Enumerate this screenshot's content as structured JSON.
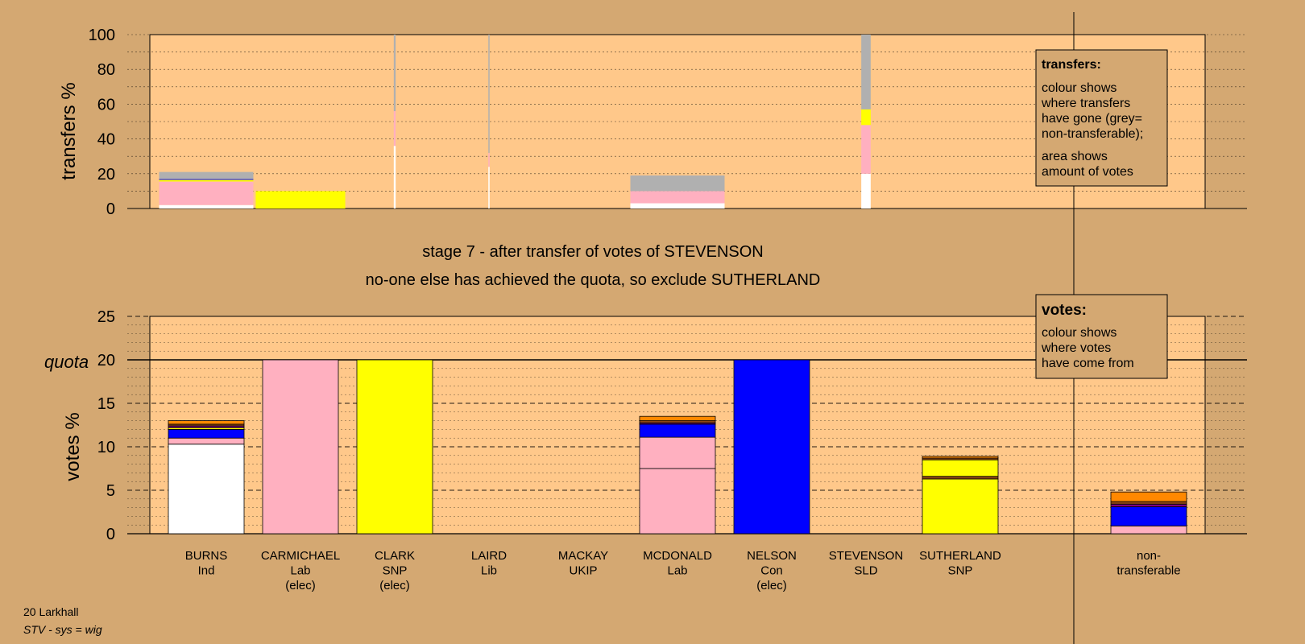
{
  "colors": {
    "background": "#d4a872",
    "plot_bg": "#ffc88a",
    "Ind": "#ffffff",
    "Lab": "#ffb0c0",
    "SNP": "#ffff00",
    "Con": "#0000ff",
    "Lib": "#ff8800",
    "UKIP": "#800080",
    "SLD": "#8b4513",
    "non-transferable": "#b0b0b0"
  },
  "header": {
    "line1": "stage 7 - after transfer of votes of STEVENSON",
    "line2": "no-one else has achieved the quota, so exclude SUTHERLAND"
  },
  "footer": {
    "ward": "20 Larkhall",
    "system": "STV - sys = wig"
  },
  "legends": {
    "transfers": {
      "title": "transfers:",
      "lines1": [
        "colour shows",
        "where transfers",
        "have gone (grey=",
        "non-transferable);"
      ],
      "lines2": [
        "area shows",
        "amount of votes"
      ]
    },
    "votes": {
      "title": "votes:",
      "lines": [
        "colour shows",
        "where votes",
        "have come from"
      ]
    }
  },
  "chart_data": [
    {
      "type": "bar",
      "stacked": true,
      "ylabel": "transfers %",
      "ylim": [
        0,
        100
      ],
      "yticks": [
        0,
        20,
        40,
        60,
        80,
        100
      ],
      "grid": true,
      "categories": [
        "BURNS",
        "CARMICHAEL",
        "CLARK",
        "LAIRD",
        "MACKAY",
        "MCDONALD",
        "NELSON",
        "STEVENSON",
        "SUTHERLAND"
      ],
      "bar_weights": [
        1.0,
        0.95,
        0.02,
        0.01,
        0,
        1.0,
        0,
        0.1,
        0
      ],
      "stacks": [
        [
          {
            "party": "Ind",
            "value": 2
          },
          {
            "party": "Lab",
            "value": 13.5
          },
          {
            "party": "SNP",
            "value": 1
          },
          {
            "party": "Con",
            "value": 0.5
          },
          {
            "party": "non-transferable",
            "value": 4
          }
        ],
        [
          {
            "party": "SNP",
            "value": 10
          }
        ],
        [
          {
            "party": "Ind",
            "value": 36
          },
          {
            "party": "Lab",
            "value": 20
          },
          {
            "party": "non-transferable",
            "value": 44
          }
        ],
        [
          {
            "party": "Ind",
            "value": 24
          },
          {
            "party": "Lab",
            "value": 8
          },
          {
            "party": "non-transferable",
            "value": 68
          }
        ],
        [],
        [
          {
            "party": "Ind",
            "value": 3
          },
          {
            "party": "Lab",
            "value": 7
          },
          {
            "party": "non-transferable",
            "value": 9
          }
        ],
        [],
        [
          {
            "party": "Ind",
            "value": 20
          },
          {
            "party": "Lab",
            "value": 28
          },
          {
            "party": "SNP",
            "value": 9
          },
          {
            "party": "non-transferable",
            "value": 43
          }
        ],
        []
      ]
    },
    {
      "type": "bar",
      "stacked": true,
      "ylabel": "votes %",
      "ylim": [
        0,
        25
      ],
      "yticks": [
        0,
        5,
        10,
        15,
        20,
        25
      ],
      "quota": 20,
      "quota_label": "quota",
      "grid": true,
      "categories": [
        "BURNS",
        "CARMICHAEL",
        "CLARK",
        "LAIRD",
        "MACKAY",
        "MCDONALD",
        "NELSON",
        "STEVENSON",
        "SUTHERLAND",
        "non-transferable"
      ],
      "parties": [
        "Ind",
        "Lab",
        "SNP",
        "Lib",
        "UKIP",
        "Lab",
        "Con",
        "SLD",
        "SNP",
        ""
      ],
      "status": [
        "",
        "(elec)",
        "(elec)",
        "",
        "",
        "",
        "(elec)",
        "",
        "",
        ""
      ],
      "stacks": [
        [
          {
            "party": "Ind",
            "value": 10.3
          },
          {
            "party": "Lab",
            "value": 0.7
          },
          {
            "party": "Con",
            "value": 1.0
          },
          {
            "party": "SNP",
            "value": 0.2
          },
          {
            "party": "UKIP",
            "value": 0.2
          },
          {
            "party": "SLD",
            "value": 0.2
          },
          {
            "party": "Lib",
            "value": 0.4
          }
        ],
        [
          {
            "party": "Lab",
            "value": 20
          }
        ],
        [
          {
            "party": "SNP",
            "value": 20
          }
        ],
        [],
        [],
        [
          {
            "party": "Lab",
            "value": 7.5
          },
          {
            "party": "Lab",
            "value": 3.6
          },
          {
            "party": "Con",
            "value": 1.5
          },
          {
            "party": "UKIP",
            "value": 0.15
          },
          {
            "party": "SLD",
            "value": 0.25
          },
          {
            "party": "Lib",
            "value": 0.5
          }
        ],
        [
          {
            "party": "Con",
            "value": 20
          }
        ],
        [],
        [
          {
            "party": "SNP",
            "value": 6.3
          },
          {
            "party": "SLD",
            "value": 0.3
          },
          {
            "party": "SNP",
            "value": 1.9
          },
          {
            "party": "SLD",
            "value": 0.2
          },
          {
            "party": "Lib",
            "value": 0.2
          }
        ],
        [
          {
            "party": "Lab",
            "value": 0.9
          },
          {
            "party": "Con",
            "value": 2.2
          },
          {
            "party": "UKIP",
            "value": 0.3
          },
          {
            "party": "SLD",
            "value": 0.3
          },
          {
            "party": "Lib",
            "value": 1.1
          }
        ]
      ]
    }
  ]
}
